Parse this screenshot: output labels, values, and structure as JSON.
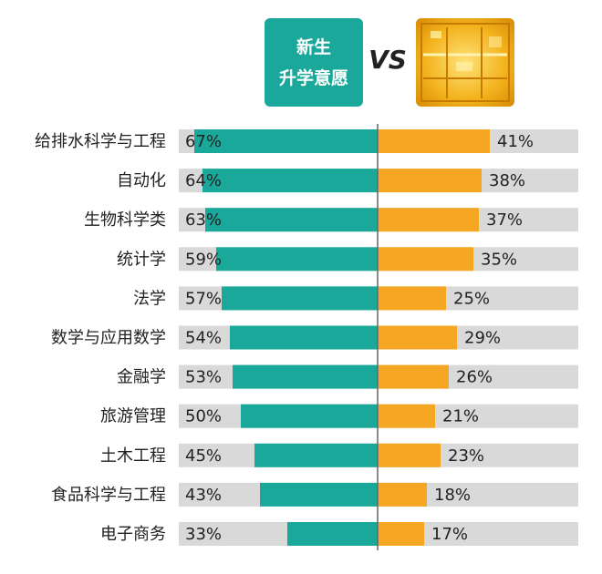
{
  "header": {
    "left_label_line1": "新生",
    "left_label_line2": "升学意愿",
    "vs_label": "VS"
  },
  "colors": {
    "left_bar": "#1aa89a",
    "right_bar": "#f5a623",
    "track": "#d9d9d9",
    "divider": "#666666"
  },
  "chart_data": {
    "type": "bar",
    "categories": [
      "给排水科学与工程",
      "自动化",
      "生物科学类",
      "统计学",
      "法学",
      "数学与应用数学",
      "金融学",
      "旅游管理",
      "土木工程",
      "食品科学与工程",
      "电子商务"
    ],
    "series": [
      {
        "name": "新生 升学意愿",
        "values": [
          67,
          64,
          63,
          59,
          57,
          54,
          53,
          50,
          45,
          43,
          33
        ],
        "labels": [
          "67%",
          "64%",
          "63%",
          "59%",
          "57%",
          "54%",
          "53%",
          "50%",
          "45%",
          "43%",
          "33%"
        ]
      },
      {
        "values": [
          41,
          38,
          37,
          35,
          25,
          29,
          26,
          21,
          23,
          18,
          17
        ],
        "labels": [
          "41%",
          "38%",
          "37%",
          "35%",
          "25%",
          "29%",
          "26%",
          "21%",
          "23%",
          "18%",
          "17%"
        ]
      }
    ],
    "xlim": [
      0,
      100
    ]
  }
}
